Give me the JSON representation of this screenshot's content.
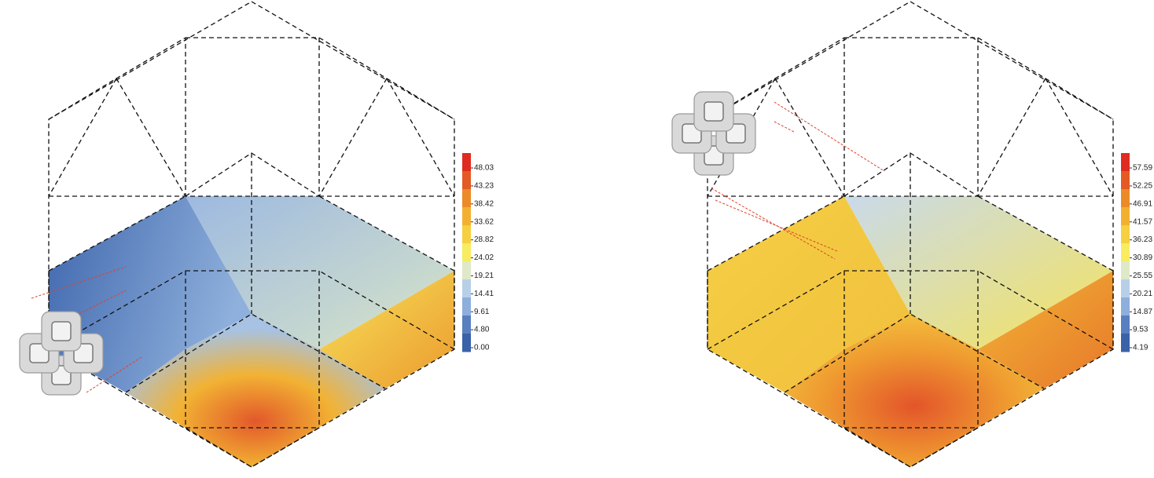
{
  "panels": [
    {
      "colorbar": {
        "ticks": [
          "48.03",
          "43.23",
          "38.42",
          "33.62",
          "28.82",
          "24.02",
          "19.21",
          "14.41",
          "9.61",
          "4.80",
          "0.00"
        ]
      }
    },
    {
      "colorbar": {
        "ticks": [
          "57.59",
          "52.25",
          "46.91",
          "41.57",
          "36.23",
          "30.89",
          "25.55",
          "20.21",
          "14.87",
          "9.53",
          "4.19"
        ]
      }
    }
  ]
}
